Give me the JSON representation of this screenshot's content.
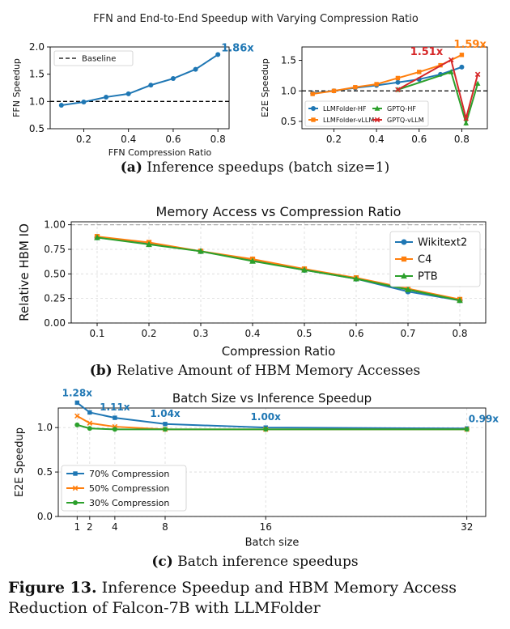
{
  "figure": {
    "label": "Figure 13.",
    "caption": "Inference Speedup and HBM Memory Access Reduction of Falcon-7B with LLMFolder"
  },
  "subcaptions": {
    "a": {
      "label": "(a)",
      "text": "Inference speedups (batch size=1)"
    },
    "b": {
      "label": "(b)",
      "text": "Relative Amount of HBM Memory Accesses"
    },
    "c": {
      "label": "(c)",
      "text": "Batch inference speedups"
    }
  },
  "panel_a_title": "FFN and End-to-End Speedup with Varying Compression Ratio",
  "chart_data": [
    {
      "id": "ffn",
      "type": "line",
      "xlabel": "FFN Compression Ratio",
      "ylabel": "FFN Speedup",
      "xlim": [
        0.05,
        0.85
      ],
      "ylim": [
        0.5,
        2.0
      ],
      "xticks": [
        "0.2",
        "0.4",
        "0.6",
        "0.8"
      ],
      "xtick_values": [
        0.2,
        0.4,
        0.6,
        0.8
      ],
      "yticks": [
        "0.5",
        "1.0",
        "1.5",
        "2.0"
      ],
      "ytick_values": [
        0.5,
        1.0,
        1.5,
        2.0
      ],
      "legend": {
        "position": "top-left",
        "entries": [
          {
            "label": "Baseline",
            "style": "dashed",
            "color": "#000000"
          }
        ]
      },
      "baseline": 1.0,
      "series": [
        {
          "x": [
            0.1,
            0.2,
            0.3,
            0.4,
            0.5,
            0.6,
            0.7,
            0.8
          ],
          "values": [
            0.93,
            0.99,
            1.08,
            1.14,
            1.3,
            1.42,
            1.59,
            1.86
          ],
          "color": "#1f77b4",
          "marker": "circle"
        }
      ],
      "annotations": [
        {
          "text": "1.86x",
          "x": 0.8,
          "y": 1.86,
          "color": "#1f77b4"
        }
      ]
    },
    {
      "id": "e2e",
      "type": "line",
      "xlabel": "",
      "ylabel": "E2E Speedup",
      "xlim": [
        0.05,
        0.92
      ],
      "ylim": [
        0.38,
        1.72
      ],
      "xticks": [
        "0.2",
        "0.4",
        "0.6",
        "0.8"
      ],
      "xtick_values": [
        0.2,
        0.4,
        0.6,
        0.8
      ],
      "yticks": [
        "0.5",
        "1.0",
        "1.5"
      ],
      "ytick_values": [
        0.5,
        1.0,
        1.5
      ],
      "baseline": 1.0,
      "legend": {
        "position": "bottom"
      },
      "series": [
        {
          "name": "LLMFolder-HF",
          "color": "#1f77b4",
          "marker": "circle",
          "x": [
            0.1,
            0.2,
            0.3,
            0.4,
            0.5,
            0.6,
            0.7,
            0.8
          ],
          "values": [
            0.96,
            1.0,
            1.05,
            1.09,
            1.14,
            1.19,
            1.27,
            1.39
          ]
        },
        {
          "name": "LLMFolder-vLLM",
          "color": "#ff7f0e",
          "marker": "square",
          "x": [
            0.1,
            0.2,
            0.3,
            0.4,
            0.5,
            0.6,
            0.7,
            0.8
          ],
          "values": [
            0.95,
            1.0,
            1.06,
            1.11,
            1.21,
            1.31,
            1.42,
            1.59
          ]
        },
        {
          "name": "GPTQ-HF",
          "color": "#2ca02c",
          "marker": "triangle",
          "x": [
            0.5,
            0.75,
            0.82,
            0.875
          ],
          "values": [
            1.02,
            1.31,
            0.47,
            1.12
          ]
        },
        {
          "name": "GPTQ-vLLM",
          "color": "#d62728",
          "marker": "x",
          "x": [
            0.5,
            0.75,
            0.82,
            0.875
          ],
          "values": [
            1.02,
            1.51,
            0.55,
            1.27
          ]
        }
      ],
      "annotations": [
        {
          "text": "1.51x",
          "x": 0.75,
          "y": 1.51,
          "color": "#d62728"
        },
        {
          "text": "1.59x",
          "x": 0.8,
          "y": 1.59,
          "color": "#ff7f0e"
        }
      ]
    },
    {
      "id": "hbm",
      "type": "line",
      "title": "Memory Access vs Compression Ratio",
      "xlabel": "Compression Ratio",
      "ylabel": "Relative HBM IO",
      "xlim": [
        0.05,
        0.85
      ],
      "ylim": [
        0.0,
        1.03
      ],
      "categories": [
        "0.1",
        "0.2",
        "0.3",
        "0.4",
        "0.5",
        "0.6",
        "0.7",
        "0.8"
      ],
      "xtick_values": [
        0.1,
        0.2,
        0.3,
        0.4,
        0.5,
        0.6,
        0.7,
        0.8
      ],
      "yticks": [
        "0.00",
        "0.25",
        "0.50",
        "0.75",
        "1.00"
      ],
      "ytick_values": [
        0.0,
        0.25,
        0.5,
        0.75,
        1.0
      ],
      "grid": true,
      "reference": 1.0,
      "legend": {
        "position": "top-right"
      },
      "series": [
        {
          "name": "Wikitext2",
          "color": "#1f77b4",
          "marker": "circle",
          "x": [
            0.1,
            0.2,
            0.3,
            0.4,
            0.5,
            0.6,
            0.7,
            0.8
          ],
          "values": [
            0.87,
            0.81,
            0.73,
            0.64,
            0.54,
            0.45,
            0.32,
            0.23
          ]
        },
        {
          "name": "C4",
          "color": "#ff7f0e",
          "marker": "square",
          "x": [
            0.1,
            0.2,
            0.3,
            0.4,
            0.5,
            0.6,
            0.7,
            0.8
          ],
          "values": [
            0.88,
            0.82,
            0.73,
            0.65,
            0.55,
            0.46,
            0.35,
            0.24
          ]
        },
        {
          "name": "PTB",
          "color": "#2ca02c",
          "marker": "triangle",
          "x": [
            0.1,
            0.2,
            0.3,
            0.4,
            0.5,
            0.6,
            0.7,
            0.8
          ],
          "values": [
            0.87,
            0.8,
            0.73,
            0.63,
            0.54,
            0.45,
            0.34,
            0.23
          ]
        }
      ]
    },
    {
      "id": "batch",
      "type": "line",
      "title": "Batch Size vs Inference Speedup",
      "xlabel": "Batch size",
      "ylabel": "E2E Speedup",
      "xlim": [
        -0.5,
        33.5
      ],
      "ylim": [
        0.0,
        1.22
      ],
      "xticks": [
        "1",
        "2",
        "4",
        "8",
        "16",
        "32"
      ],
      "xtick_values": [
        1,
        2,
        4,
        8,
        16,
        32
      ],
      "yticks": [
        "0.0",
        "0.5",
        "1.0"
      ],
      "ytick_values": [
        0.0,
        0.5,
        1.0
      ],
      "grid": true,
      "legend": {
        "position": "bottom-left"
      },
      "series": [
        {
          "name": "70% Compression",
          "color": "#1f77b4",
          "marker": "square",
          "x": [
            1,
            2,
            4,
            8,
            16,
            32
          ],
          "values": [
            1.28,
            1.17,
            1.11,
            1.04,
            1.0,
            0.99
          ]
        },
        {
          "name": "50% Compression",
          "color": "#ff7f0e",
          "marker": "x",
          "x": [
            1,
            2,
            4,
            8,
            16,
            32
          ],
          "values": [
            1.13,
            1.05,
            1.01,
            0.98,
            0.98,
            0.98
          ]
        },
        {
          "name": "30% Compression",
          "color": "#2ca02c",
          "marker": "circle",
          "x": [
            1,
            2,
            4,
            8,
            16,
            32
          ],
          "values": [
            1.03,
            0.99,
            0.98,
            0.98,
            0.98,
            0.98
          ]
        }
      ],
      "annotations": [
        {
          "text": "1.28x",
          "x": 1,
          "y": 1.28,
          "color": "#1f77b4"
        },
        {
          "text": "1.11x",
          "x": 4,
          "y": 1.11,
          "color": "#1f77b4"
        },
        {
          "text": "1.04x",
          "x": 8,
          "y": 1.04,
          "color": "#1f77b4"
        },
        {
          "text": "1.00x",
          "x": 16,
          "y": 1.0,
          "color": "#1f77b4"
        },
        {
          "text": "0.99x",
          "x": 32,
          "y": 0.99,
          "color": "#1f77b4"
        }
      ]
    }
  ]
}
